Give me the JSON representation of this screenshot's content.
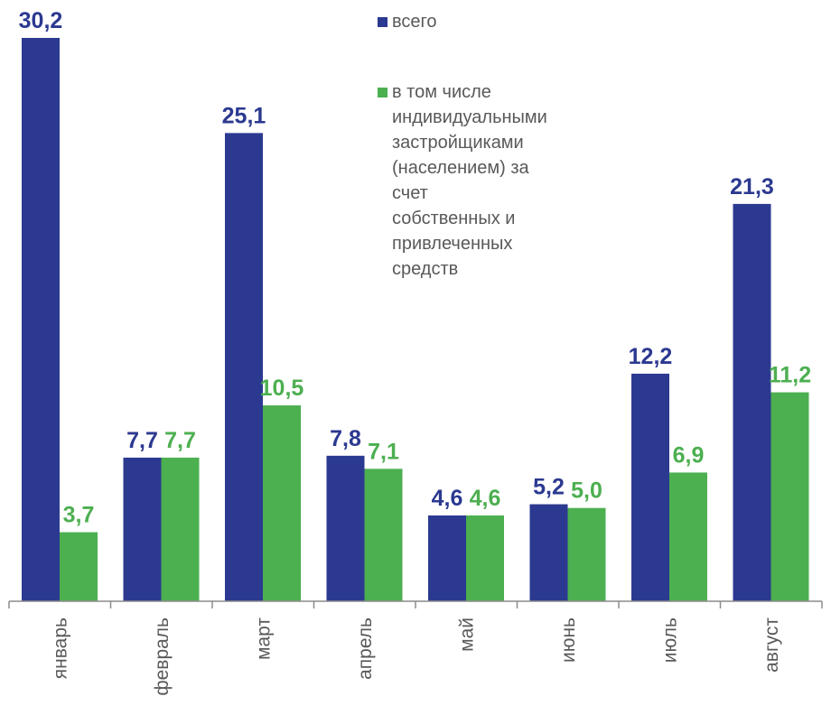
{
  "chart_data": {
    "type": "bar",
    "categories": [
      "январь",
      "февраль",
      "март",
      "апрель",
      "май",
      "июнь",
      "июль",
      "август"
    ],
    "series": [
      {
        "name": "всего",
        "color": "#2B3990",
        "values": [
          30.2,
          7.7,
          25.1,
          7.8,
          4.6,
          5.2,
          12.2,
          21.3
        ],
        "labels": [
          "30,2",
          "7,7",
          "25,1",
          "7,8",
          "4,6",
          "5,2",
          "12,2",
          "21,3"
        ]
      },
      {
        "name": "в том числе индивидуальными\nзастройщиками (населением) за счет\nсобственных и привлеченных средств",
        "color": "#4CAF50",
        "values": [
          3.7,
          7.7,
          10.5,
          7.1,
          4.6,
          5.0,
          6.9,
          11.2
        ],
        "labels": [
          "3,7",
          "7,7",
          "10,5",
          "7,1",
          "4,6",
          "5,0",
          "6,9",
          "11,2"
        ]
      }
    ],
    "title": "",
    "xlabel": "",
    "ylabel": "",
    "ylim": [
      0,
      30.2
    ],
    "grid": false,
    "legend_position": "top-right",
    "label_colors": {
      "series1": "#2B3990",
      "series2": "#4CAF50"
    }
  }
}
